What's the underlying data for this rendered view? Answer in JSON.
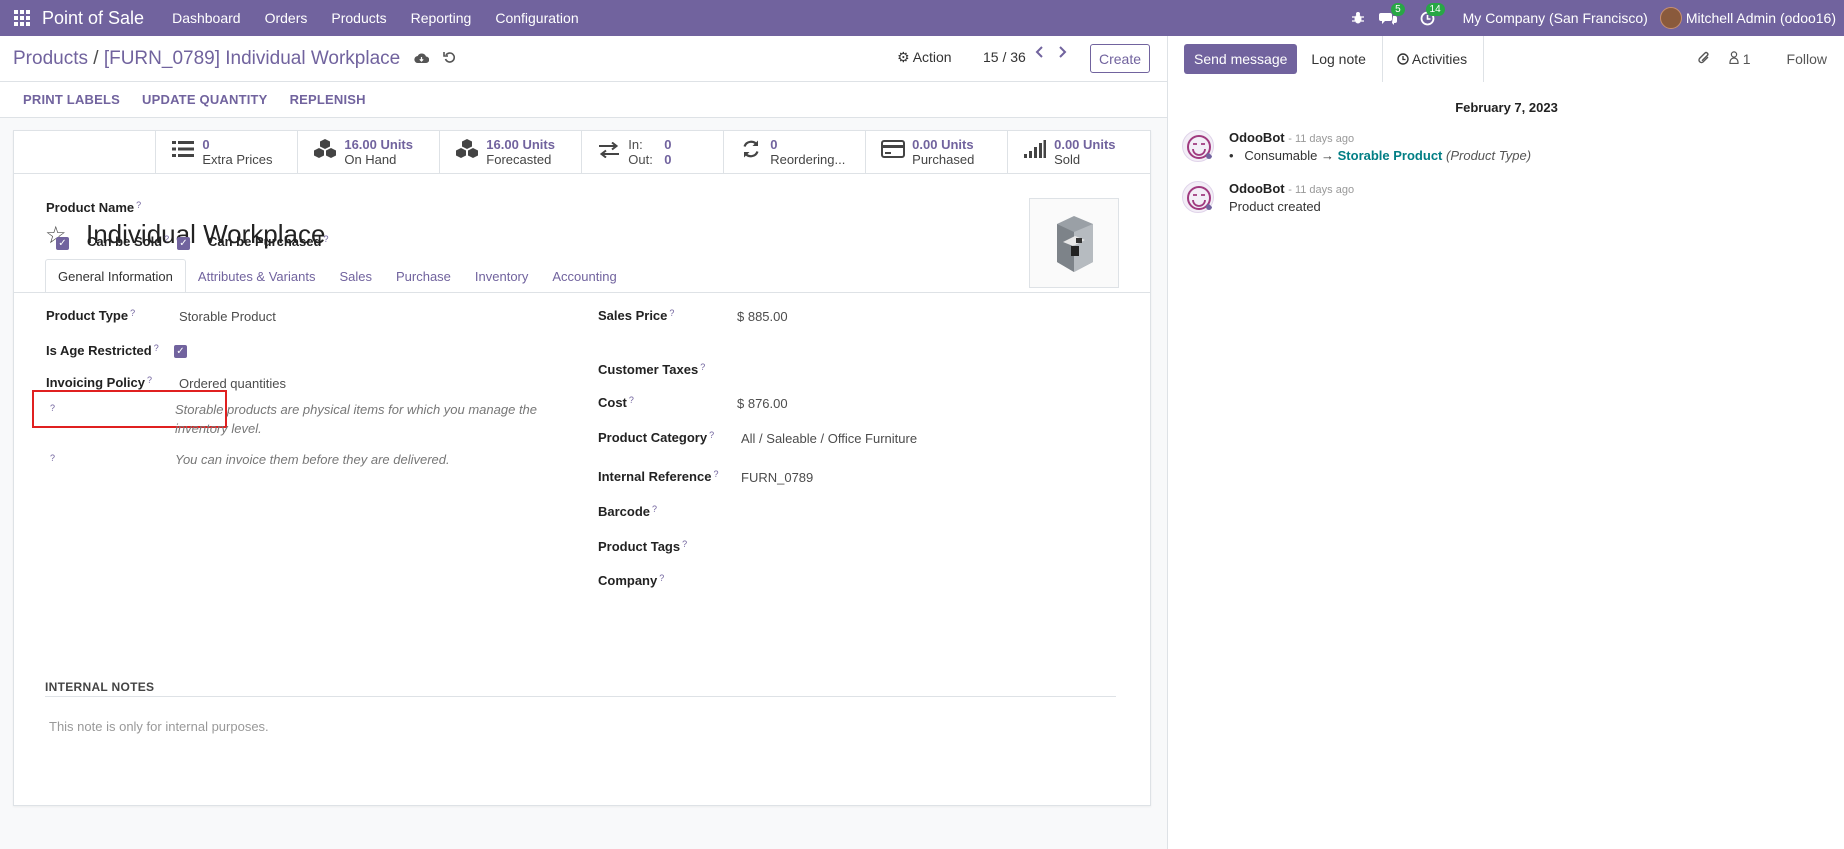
{
  "navbar": {
    "app_name": "Point of Sale",
    "menu": [
      "Dashboard",
      "Orders",
      "Products",
      "Reporting",
      "Configuration"
    ],
    "messages_count": "5",
    "activities_count": "14",
    "company": "My Company (San Francisco)",
    "user": "Mitchell Admin (odoo16)"
  },
  "breadcrumb": {
    "parent": "Products",
    "separator": "/",
    "current": "[FURN_0789] Individual Workplace"
  },
  "control": {
    "action_label": "Action",
    "pager": "15 / 36",
    "create_label": "Create"
  },
  "buttons": {
    "print_labels": "PRINT LABELS",
    "update_quantity": "UPDATE QUANTITY",
    "replenish": "REPLENISH"
  },
  "stats": {
    "extra_prices": {
      "value": "0",
      "label": "Extra Prices"
    },
    "on_hand": {
      "value": "16.00 Units",
      "label": "On Hand"
    },
    "forecasted": {
      "value": "16.00 Units",
      "label": "Forecasted"
    },
    "in_label": "In:",
    "in_value": "0",
    "out_label": "Out:",
    "out_value": "0",
    "reordering": {
      "value": "0",
      "label": "Reordering..."
    },
    "purchased": {
      "value": "0.00 Units",
      "label": "Purchased"
    },
    "sold": {
      "value": "0.00 Units",
      "label": "Sold"
    }
  },
  "product": {
    "name_label": "Product Name",
    "name": "Individual Workplace",
    "can_be_sold_label": "Can be Sold",
    "can_be_purchased_label": "Can be Purchased",
    "can_be_sold": true,
    "can_be_purchased": true
  },
  "tabs": [
    "General Information",
    "Attributes & Variants",
    "Sales",
    "Purchase",
    "Inventory",
    "Accounting"
  ],
  "active_tab": "General Information",
  "general": {
    "product_type_label": "Product Type",
    "product_type": "Storable Product",
    "age_restricted_label": "Is Age Restricted",
    "age_restricted": true,
    "invoicing_policy_label": "Invoicing Policy",
    "invoicing_policy": "Ordered quantities",
    "hint1": "Storable products are physical items for which you manage the inventory level.",
    "hint2": "You can invoice them before they are delivered.",
    "hint_mark": "?",
    "sales_price_label": "Sales Price",
    "sales_price": "$ 885.00",
    "customer_taxes_label": "Customer Taxes",
    "cost_label": "Cost",
    "cost": "$ 876.00",
    "product_category_label": "Product Category",
    "product_category": "All / Saleable / Office Furniture",
    "internal_reference_label": "Internal Reference",
    "internal_reference": "FURN_0789",
    "barcode_label": "Barcode",
    "product_tags_label": "Product Tags",
    "company_label": "Company"
  },
  "notes": {
    "heading": "INTERNAL NOTES",
    "placeholder": "This note is only for internal purposes."
  },
  "chatter": {
    "send_message": "Send message",
    "log_note": "Log note",
    "activities": "Activities",
    "followers_count": "1",
    "follow": "Follow",
    "date": "February 7, 2023",
    "messages": [
      {
        "author": "OdooBot",
        "time": "- 11 days ago",
        "old": "Consumable",
        "arrow": "→",
        "new": "Storable Product",
        "field": "(Product Type)"
      },
      {
        "author": "OdooBot",
        "time": "- 11 days ago",
        "body": "Product created"
      }
    ]
  },
  "colors": {
    "brand": "#71639e",
    "highlight": "#e02020",
    "link": "#017e84"
  }
}
